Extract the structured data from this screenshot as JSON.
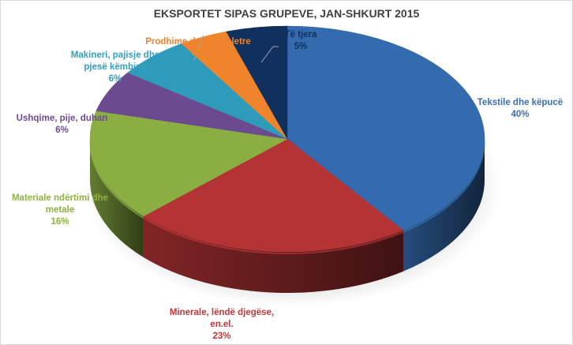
{
  "chart_data": {
    "type": "pie",
    "style": "3d",
    "title": "EKSPORTET SIPAS GRUPEVE, JAN-SHKURT 2015",
    "categories": [
      "Tekstile dhe këpucë",
      "Minerale, lëndë djegëse, en.el.",
      "Materiale ndërtimi dhe metale",
      "Ushqime, pije, duhan",
      "Makineri, pajisje dhe pjesë këmbimi",
      "Prodhime druri dhe letre",
      "Të tjera"
    ],
    "values": [
      40,
      23,
      16,
      6,
      6,
      4,
      5
    ],
    "units": "%",
    "colors": [
      "#336BAE",
      "#B43335",
      "#8AAE41",
      "#6C4A8F",
      "#2F9BBA",
      "#EF842C",
      "#10305D"
    ],
    "legend": "none (data labels)"
  },
  "labels": [
    {
      "text": "Tekstile dhe këpucë\n40%",
      "color": "#3A6FB5"
    },
    {
      "text": "Minerale, lëndë djegëse,\nen.el.\n23%",
      "color": "#C0393B"
    },
    {
      "text": "Materiale ndërtimi dhe\nmetale\n16%",
      "color": "#8DB23F"
    },
    {
      "text": "Ushqime, pije, duhan\n6%",
      "color": "#6D4A94"
    },
    {
      "text": "Makineri, pajisje dhe\npjesë këmbimi\n6%",
      "color": "#33A0C0"
    },
    {
      "text": "Prodhime druri dhe letre\n4%",
      "color": "#F0852D"
    },
    {
      "text": "Të tjera\n5%",
      "color": "#10305D"
    }
  ]
}
